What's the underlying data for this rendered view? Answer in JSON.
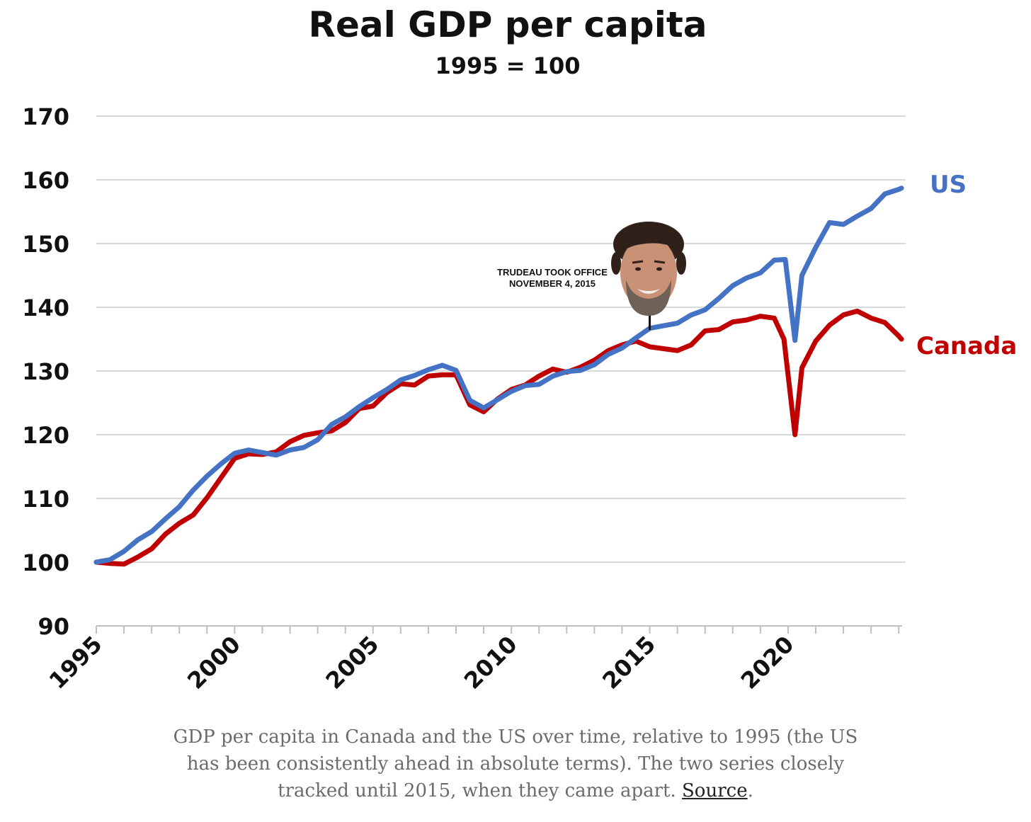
{
  "chart_data": {
    "type": "line",
    "title": "Real GDP per capita",
    "subtitle": "1995 = 100",
    "xlabel": "",
    "ylabel": "",
    "xlim": [
      1995,
      2024.25
    ],
    "ylim": [
      90,
      170
    ],
    "yticks": [
      "170",
      "160",
      "150",
      "140",
      "130",
      "120",
      "110",
      "100",
      "90"
    ],
    "xticks": [
      "1995",
      "2000",
      "2005",
      "2010",
      "2015",
      "2020"
    ],
    "grid": true,
    "annotation": {
      "line1": "TRUDEAU TOOK OFFICE",
      "line2": "NOVEMBER 4, 2015",
      "x": 2015.0,
      "image": "portrait-photo"
    },
    "series": [
      {
        "name": "US",
        "color": "#4472c4",
        "x": [
          1995.0,
          1995.5,
          1996.0,
          1996.5,
          1997.0,
          1997.5,
          1998.0,
          1998.5,
          1999.0,
          1999.5,
          2000.0,
          2000.5,
          2001.0,
          2001.5,
          2002.0,
          2002.5,
          2003.0,
          2003.5,
          2004.0,
          2004.5,
          2005.0,
          2005.5,
          2006.0,
          2006.5,
          2007.0,
          2007.5,
          2008.0,
          2008.5,
          2009.0,
          2009.5,
          2010.0,
          2010.5,
          2011.0,
          2011.5,
          2012.0,
          2012.5,
          2013.0,
          2013.5,
          2014.0,
          2014.5,
          2015.0,
          2015.5,
          2016.0,
          2016.5,
          2017.0,
          2017.5,
          2018.0,
          2018.5,
          2019.0,
          2019.5,
          2019.9,
          2020.25,
          2020.5,
          2021.0,
          2021.5,
          2022.0,
          2022.5,
          2023.0,
          2023.5,
          2024.0,
          2024.1
        ],
        "values": [
          100.0,
          100.4,
          101.7,
          103.5,
          104.8,
          106.8,
          108.7,
          111.3,
          113.5,
          115.4,
          117.1,
          117.6,
          117.2,
          116.8,
          117.6,
          118.0,
          119.2,
          121.6,
          122.8,
          124.4,
          125.8,
          127.1,
          128.6,
          129.3,
          130.2,
          130.9,
          130.1,
          125.4,
          124.2,
          125.5,
          126.8,
          127.7,
          127.9,
          129.2,
          129.9,
          130.1,
          131.0,
          132.6,
          133.6,
          135.2,
          136.7,
          137.1,
          137.5,
          138.8,
          139.6,
          141.4,
          143.4,
          144.6,
          145.4,
          147.4,
          147.5,
          134.8,
          145.0,
          149.4,
          153.3,
          153.0,
          154.3,
          155.5,
          157.8,
          158.5,
          158.7
        ]
      },
      {
        "name": "Canada",
        "color": "#c00000",
        "x": [
          1995.0,
          1995.5,
          1996.0,
          1996.5,
          1997.0,
          1997.5,
          1998.0,
          1998.5,
          1999.0,
          1999.5,
          2000.0,
          2000.5,
          2001.0,
          2001.5,
          2002.0,
          2002.5,
          2003.0,
          2003.5,
          2004.0,
          2004.5,
          2005.0,
          2005.5,
          2006.0,
          2006.5,
          2007.0,
          2007.5,
          2008.0,
          2008.5,
          2009.0,
          2009.5,
          2010.0,
          2010.5,
          2011.0,
          2011.5,
          2012.0,
          2012.5,
          2013.0,
          2013.5,
          2014.0,
          2014.5,
          2015.0,
          2015.5,
          2016.0,
          2016.5,
          2017.0,
          2017.5,
          2018.0,
          2018.5,
          2019.0,
          2019.5,
          2019.85,
          2020.25,
          2020.5,
          2021.0,
          2021.5,
          2022.0,
          2022.5,
          2023.0,
          2023.5,
          2024.0,
          2024.1
        ],
        "values": [
          100.0,
          99.8,
          99.7,
          100.8,
          102.1,
          104.4,
          106.1,
          107.4,
          110.1,
          113.2,
          116.3,
          117.0,
          116.9,
          117.3,
          118.9,
          119.9,
          120.3,
          120.6,
          121.9,
          124.1,
          124.5,
          126.6,
          128.0,
          127.8,
          129.2,
          129.4,
          129.4,
          124.7,
          123.6,
          125.6,
          127.1,
          127.8,
          129.2,
          130.3,
          129.8,
          130.6,
          131.7,
          133.2,
          134.1,
          134.7,
          133.8,
          133.5,
          133.2,
          134.1,
          136.3,
          136.5,
          137.7,
          138.0,
          138.6,
          138.3,
          135.0,
          120.0,
          130.5,
          134.7,
          137.2,
          138.8,
          139.4,
          138.3,
          137.6,
          135.5,
          135.0
        ]
      }
    ]
  },
  "caption": {
    "text": "GDP per capita in Canada and the US over time, relative to 1995 (the US has been consistently ahead in absolute terms). The two series closely tracked until 2015, when they came apart. ",
    "link_label": "Source",
    "end": "."
  }
}
